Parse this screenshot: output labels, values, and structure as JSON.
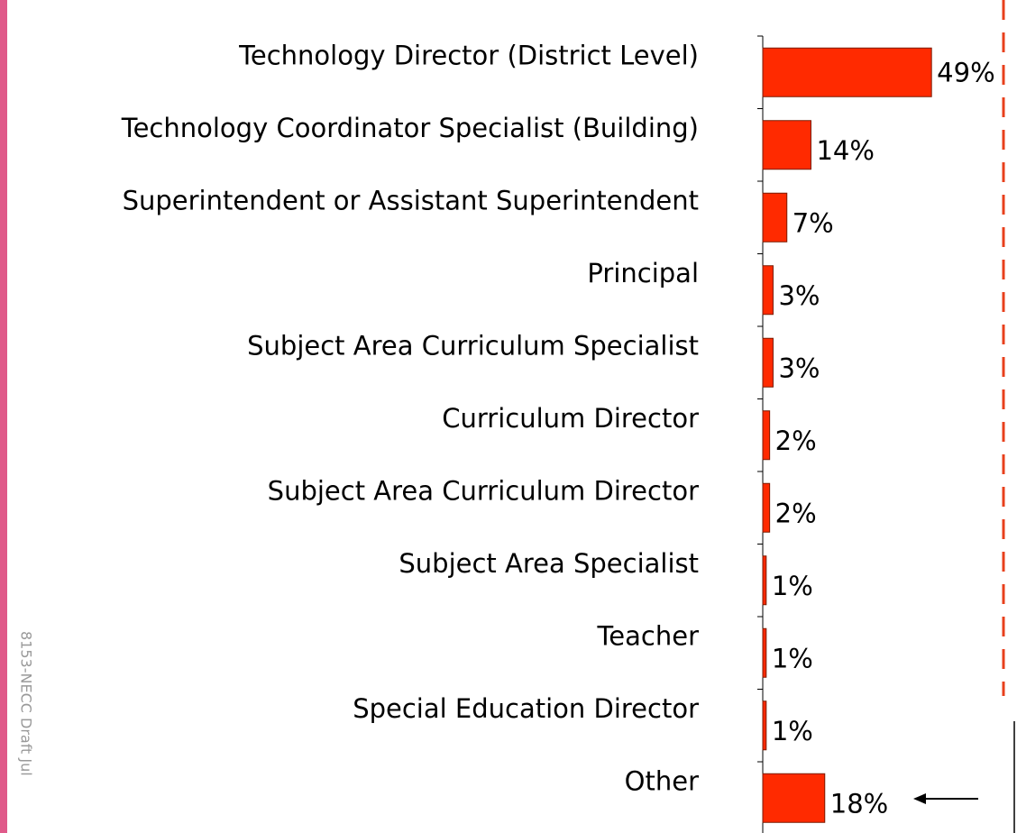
{
  "chart_data": {
    "type": "bar",
    "orientation": "horizontal",
    "categories": [
      "Technology Director (District Level)",
      "Technology Coordinator Specialist (Building)",
      "Superintendent or Assistant Superintendent",
      "Principal",
      "Subject Area Curriculum Specialist",
      "Curriculum Director",
      "Subject Area Curriculum Director",
      "Subject Area Specialist",
      "Teacher",
      "Special Education Director",
      "Other"
    ],
    "values": [
      49,
      14,
      7,
      3,
      3,
      2,
      2,
      1,
      1,
      1,
      18
    ],
    "value_labels": [
      "49%",
      "14%",
      "7%",
      "3%",
      "3%",
      "2%",
      "2%",
      "1%",
      "1%",
      "1%",
      "18%"
    ],
    "color": "#ff2a00"
  },
  "footer_note": "8153-NECC Draft Jul"
}
